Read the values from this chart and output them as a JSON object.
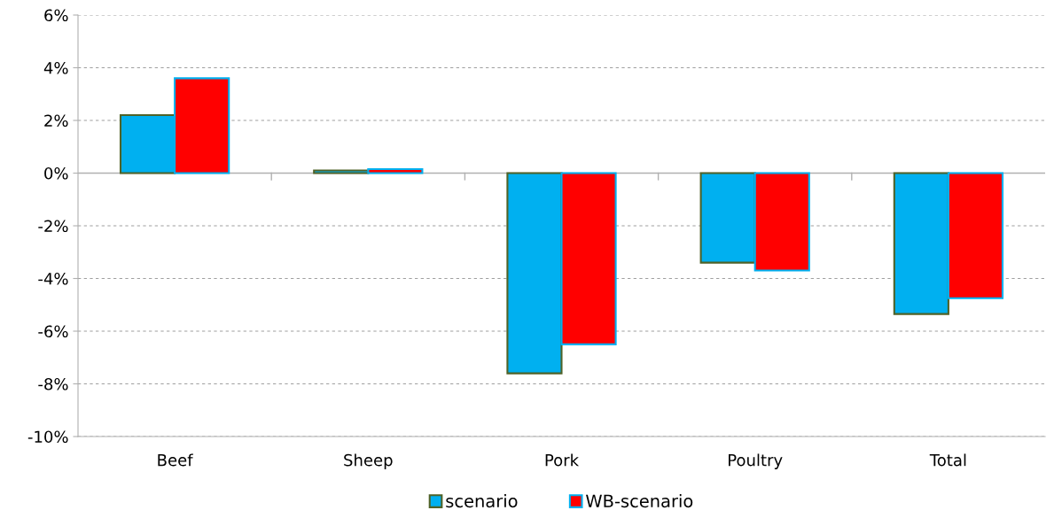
{
  "chart_data": {
    "type": "bar",
    "categories": [
      "Beef",
      "Sheep",
      "Pork",
      "Poultry",
      "Total"
    ],
    "series": [
      {
        "name": "scenario",
        "color": "#00b0f0",
        "values": [
          2.2,
          0.1,
          -7.6,
          -3.4,
          -5.35
        ]
      },
      {
        "name": "WB-scenario",
        "color": "#ff0000",
        "values": [
          3.6,
          0.15,
          -6.5,
          -3.7,
          -4.75
        ]
      }
    ],
    "ylim": [
      -10,
      6
    ],
    "yticks": [
      {
        "value": -10,
        "label": "-10%"
      },
      {
        "value": -8,
        "label": "-8%"
      },
      {
        "value": -6,
        "label": "-6%"
      },
      {
        "value": -4,
        "label": "-4%"
      },
      {
        "value": -2,
        "label": "-2%"
      },
      {
        "value": 0,
        "label": "0%"
      },
      {
        "value": 2,
        "label": "2%"
      },
      {
        "value": 4,
        "label": "4%"
      },
      {
        "value": 6,
        "label": "6%"
      }
    ],
    "grid": "y",
    "legend": "bottom"
  }
}
